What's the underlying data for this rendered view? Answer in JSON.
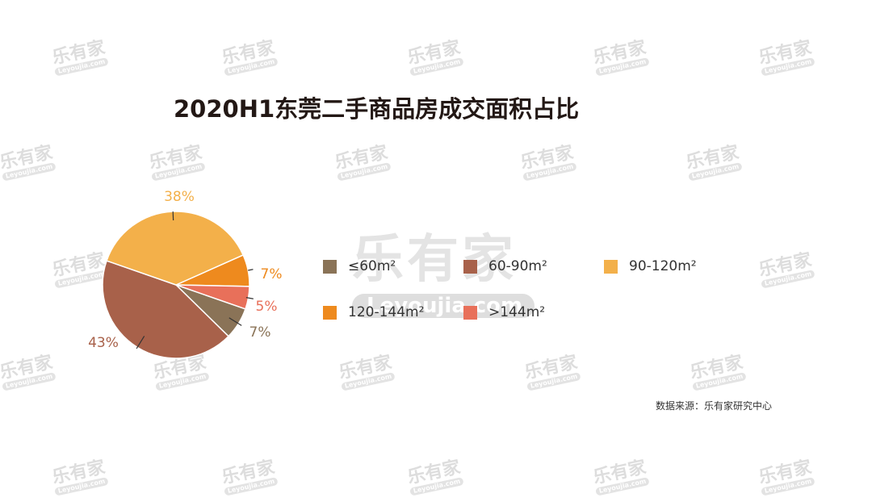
{
  "watermark": {
    "text": "乐有家",
    "sub": "Leyoujia.com"
  },
  "chart_data": {
    "type": "pie",
    "title": "2020H1东莞二手商品房成交面积占比",
    "categories": [
      "≤60m²",
      "60-90m²",
      "90-120m²",
      "120-144m²",
      ">144m²"
    ],
    "values": [
      7,
      43,
      38,
      7,
      5
    ],
    "labels": [
      "7%",
      "43%",
      "38%",
      "7%",
      "5%"
    ],
    "colors": [
      "#8a7357",
      "#a8614a",
      "#f3b04a",
      "#ee8a1e",
      "#e8705a"
    ],
    "legend_placement": "right"
  },
  "source": "数据来源：乐有家研究中心"
}
